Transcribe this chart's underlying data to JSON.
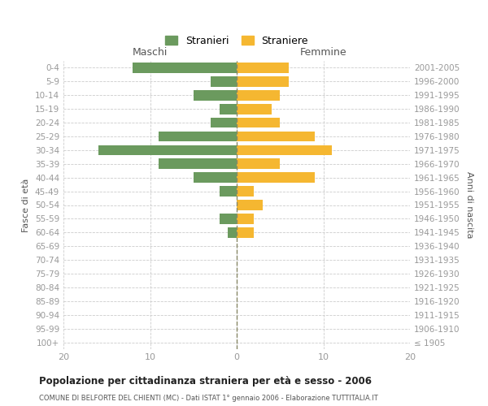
{
  "age_groups": [
    "100+",
    "95-99",
    "90-94",
    "85-89",
    "80-84",
    "75-79",
    "70-74",
    "65-69",
    "60-64",
    "55-59",
    "50-54",
    "45-49",
    "40-44",
    "35-39",
    "30-34",
    "25-29",
    "20-24",
    "15-19",
    "10-14",
    "5-9",
    "0-4"
  ],
  "birth_years": [
    "≤ 1905",
    "1906-1910",
    "1911-1915",
    "1916-1920",
    "1921-1925",
    "1926-1930",
    "1931-1935",
    "1936-1940",
    "1941-1945",
    "1946-1950",
    "1951-1955",
    "1956-1960",
    "1961-1965",
    "1966-1970",
    "1971-1975",
    "1976-1980",
    "1981-1985",
    "1986-1990",
    "1991-1995",
    "1996-2000",
    "2001-2005"
  ],
  "maschi": [
    0,
    0,
    0,
    0,
    0,
    0,
    0,
    0,
    1,
    2,
    0,
    2,
    5,
    9,
    16,
    9,
    3,
    2,
    5,
    3,
    12
  ],
  "femmine": [
    0,
    0,
    0,
    0,
    0,
    0,
    0,
    0,
    2,
    2,
    3,
    2,
    9,
    5,
    11,
    9,
    5,
    4,
    5,
    6,
    6
  ],
  "color_maschi": "#6b9a5e",
  "color_femmine": "#f5b731",
  "xlim": 20,
  "title": "Popolazione per cittadinanza straniera per età e sesso - 2006",
  "subtitle": "COMUNE DI BELFORTE DEL CHIENTI (MC) - Dati ISTAT 1° gennaio 2006 - Elaborazione TUTTITALIA.IT",
  "ylabel_left": "Fasce di età",
  "ylabel_right": "Anni di nascita",
  "legend_maschi": "Stranieri",
  "legend_femmine": "Straniere",
  "maschi_label": "Maschi",
  "femmine_label": "Femmine",
  "background_color": "#ffffff",
  "grid_color": "#cccccc",
  "tick_color": "#999999",
  "label_color": "#555555"
}
